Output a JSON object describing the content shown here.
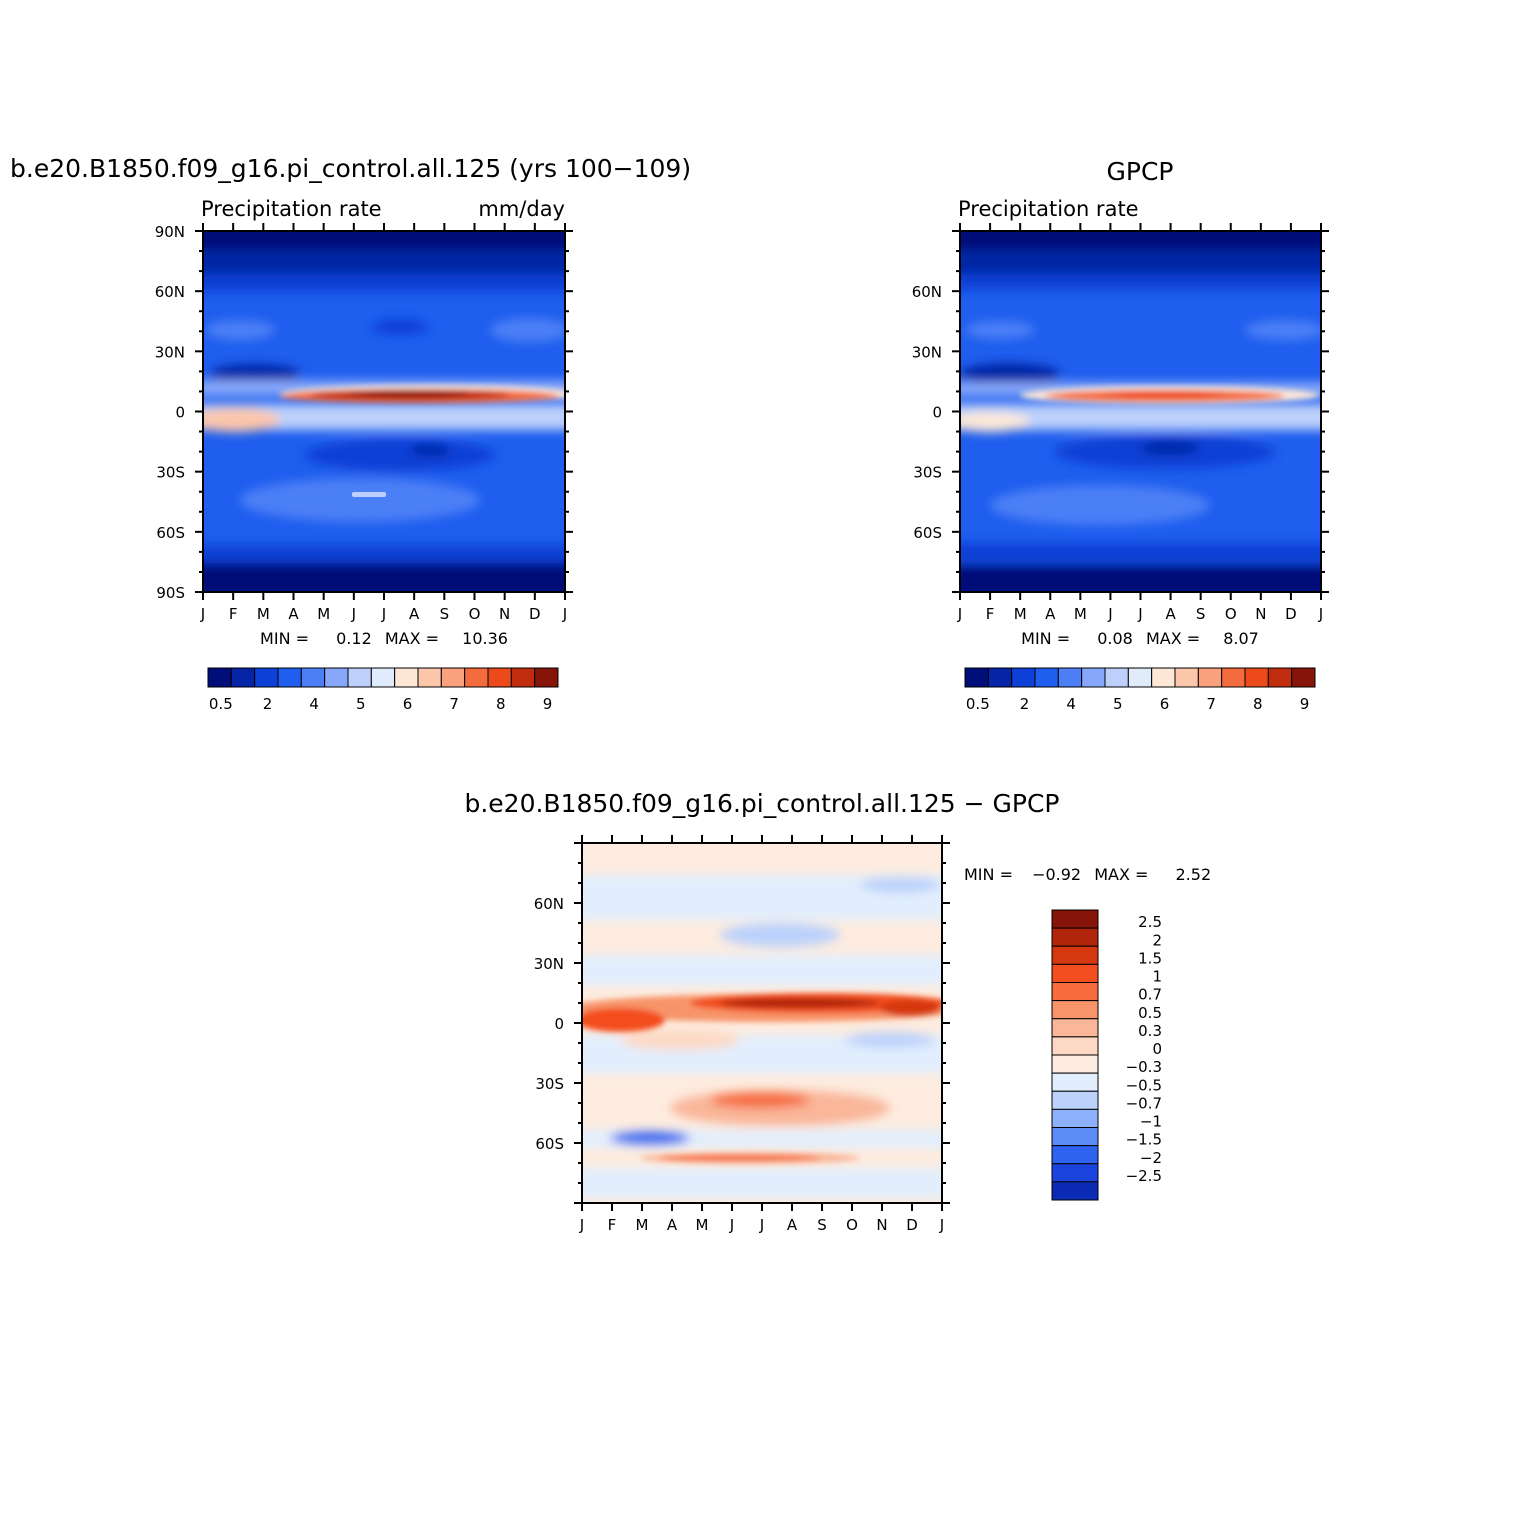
{
  "chart_data": [
    {
      "type": "heatmap",
      "title": "b.e20.B1850.f09_g16.pi_control.all.125 (yrs 100−109)",
      "left_label": "Precipitation rate",
      "right_label": "mm/day",
      "x_ticks": [
        "J",
        "F",
        "M",
        "A",
        "M",
        "J",
        "J",
        "A",
        "S",
        "O",
        "N",
        "D",
        "J"
      ],
      "y_ticks": [
        "90N",
        "60N",
        "30N",
        "0",
        "30S",
        "60S",
        "90S"
      ],
      "ylim": [
        -90,
        90
      ],
      "stats": {
        "min_label": "MIN =",
        "min": "0.12",
        "max_label": "MAX =",
        "max": "10.36"
      },
      "colorbar": {
        "orientation": "horizontal",
        "labels": [
          "0.5",
          "2",
          "4",
          "5",
          "6",
          "7",
          "8",
          "9"
        ],
        "colors": [
          "#000e79",
          "#0525a6",
          "#0c40d6",
          "#1f5eee",
          "#4c7ff6",
          "#86a7fa",
          "#bcd0fb",
          "#e0ebfc",
          "#fde8d8",
          "#fcc6ab",
          "#f9a07c",
          "#f46b3e",
          "#ec4a1a",
          "#c02c0d",
          "#871408"
        ]
      }
    },
    {
      "type": "heatmap",
      "title": "GPCP",
      "left_label": "Precipitation rate",
      "x_ticks": [
        "J",
        "F",
        "M",
        "A",
        "M",
        "J",
        "J",
        "A",
        "S",
        "O",
        "N",
        "D",
        "J"
      ],
      "y_ticks": [
        "60N",
        "30N",
        "0",
        "30S",
        "60S"
      ],
      "ylim": [
        -90,
        90
      ],
      "stats": {
        "min_label": "MIN =",
        "min": "0.08",
        "max_label": "MAX =",
        "max": "8.07"
      },
      "colorbar": {
        "orientation": "horizontal",
        "labels": [
          "0.5",
          "2",
          "4",
          "5",
          "6",
          "7",
          "8",
          "9"
        ],
        "colors": [
          "#000e79",
          "#0525a6",
          "#0c40d6",
          "#1f5eee",
          "#4c7ff6",
          "#86a7fa",
          "#bcd0fb",
          "#e0ebfc",
          "#fde8d8",
          "#fcc6ab",
          "#f9a07c",
          "#f46b3e",
          "#ec4a1a",
          "#c02c0d",
          "#871408"
        ]
      }
    },
    {
      "type": "heatmap",
      "title": "b.e20.B1850.f09_g16.pi_control.all.125 − GPCP",
      "x_ticks": [
        "J",
        "F",
        "M",
        "A",
        "M",
        "J",
        "J",
        "A",
        "S",
        "O",
        "N",
        "D",
        "J"
      ],
      "y_ticks": [
        "60N",
        "30N",
        "0",
        "30S",
        "60S"
      ],
      "ylim": [
        -90,
        90
      ],
      "stats": {
        "min_label": "MIN =",
        "min": "−0.92",
        "max_label": "MAX =",
        "max": "2.52"
      },
      "colorbar": {
        "orientation": "vertical",
        "labels": [
          "2.5",
          "2",
          "1.5",
          "1",
          "0.7",
          "0.5",
          "0.3",
          "0",
          "−0.3",
          "−0.5",
          "−0.7",
          "−1",
          "−1.5",
          "−2",
          "−2.5"
        ],
        "colors": [
          "#871408",
          "#b0250b",
          "#d5370f",
          "#f34e1f",
          "#f66c3c",
          "#f79469",
          "#f9b699",
          "#fdd9c5",
          "#fdecdf",
          "#e2eefd",
          "#bcd2fc",
          "#8eb1fb",
          "#5b8cf7",
          "#2d63ef",
          "#1b44df",
          "#0b2bb6"
        ]
      }
    }
  ]
}
